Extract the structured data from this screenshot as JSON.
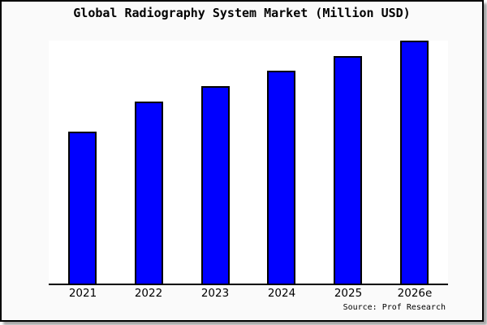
{
  "window": {
    "background_color": "#fafafa",
    "border_color": "#000000"
  },
  "chart": {
    "title": "Global Radiography System Market (Million USD)",
    "source_label": "Source: Prof Research"
  },
  "chart_data": {
    "type": "bar",
    "title": "Global Radiography System Market (Million USD)",
    "categories": [
      "2021",
      "2022",
      "2023",
      "2024",
      "2025",
      "2026e"
    ],
    "values": [
      62.7,
      74.9,
      81.3,
      87.6,
      93.6,
      100
    ],
    "value_note": "y-axis has no labels in the image; values are relative bar heights as percent of the tallest (2026e) bar",
    "xlabel": "",
    "ylabel": "",
    "ylim": [
      0,
      100
    ],
    "grid": false,
    "legend": null,
    "annotations": [
      "Source: Prof Research"
    ],
    "bar_color": "#0000ff",
    "bar_border_color": "#000000",
    "plot_background": "#ffffff",
    "outer_background": "#fafafa"
  }
}
